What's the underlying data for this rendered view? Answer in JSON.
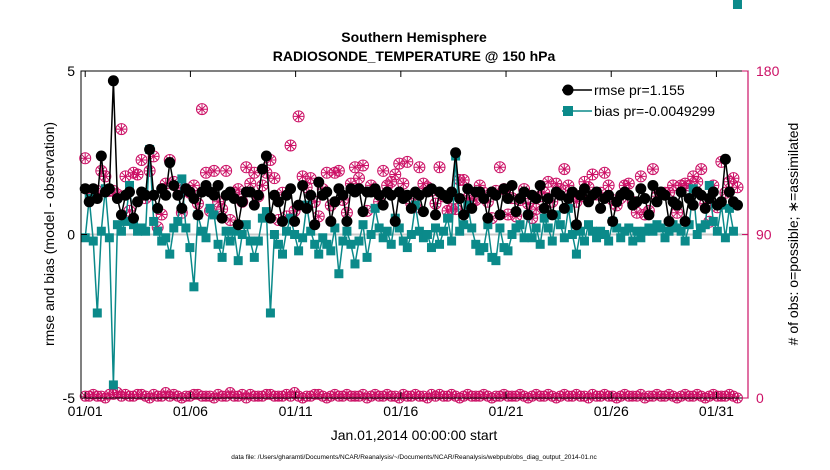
{
  "chart_data": {
    "type": "line",
    "title": "Southern Hemisphere",
    "subtitle": "RADIOSONDE_TEMPERATURE @ 150 hPa",
    "xlabel": "Jan.01,2014 00:00:00 start",
    "ylabel": "rmse and bias (model - observation)",
    "y2label": "# of obs:  o=possible;  ∗=assimilated",
    "footnote": "data file: /Users/gharamti/Documents/NCAR/Reanalysis/~/Documents/NCAR/Reanalysis/webpub/obs_diag_output_2014-01.nc",
    "xlim": [
      0.8,
      32.5
    ],
    "ylim": [
      -5,
      5
    ],
    "y2lim": [
      0,
      180
    ],
    "x_ticks": [
      1,
      6,
      11,
      16,
      21,
      26,
      31
    ],
    "x_tick_labels": [
      "01/01",
      "01/06",
      "01/11",
      "01/16",
      "01/21",
      "01/26",
      "01/31"
    ],
    "y_ticks": [
      -5,
      0,
      5
    ],
    "y_tick_labels": [
      "-5",
      "0",
      "5"
    ],
    "y2_ticks": [
      0,
      90,
      180
    ],
    "y2_tick_labels": [
      "0",
      "90",
      "180"
    ],
    "colors": {
      "rmse": "#000000",
      "bias": "#0b8a8a",
      "obs": "#cc1166",
      "zero_line": "#c8c8c8"
    },
    "series": [
      {
        "name": "rmse",
        "legend": "rmse pr=1.155",
        "values": [
          1.4,
          1.0,
          1.4,
          1.1,
          2.4,
          1.3,
          1.4,
          4.7,
          1.1,
          0.6,
          1.2,
          1.3,
          0.5,
          1.0,
          1.3,
          1.2,
          2.6,
          1.2,
          0.8,
          1.4,
          1.2,
          2.2,
          1.5,
          1.2,
          0.8,
          1.4,
          1.3,
          1.1,
          0.6,
          1.3,
          1.5,
          1.3,
          1.2,
          1.5,
          0.5,
          1.2,
          1.3,
          1.1,
          0.3,
          1.0,
          1.3,
          1.3,
          0.9,
          1.2,
          2.0,
          2.4,
          0.5,
          1.2,
          1.0,
          0.4,
          1.2,
          1.4,
          0.4,
          0.9,
          1.5,
          0.8,
          1.2,
          0.3,
          1.6,
          1.2,
          1.3,
          0.4,
          1.0,
          1.4,
          1.2,
          0.4,
          1.4,
          1.3,
          1.4,
          0.7,
          1.3,
          1.3,
          1.4,
          1.2,
          0.9,
          1.3,
          1.2,
          0.4,
          1.3,
          1.1,
          1.2,
          0.8,
          1.3,
          1.2,
          0.7,
          1.3,
          1.4,
          0.6,
          1.3,
          1.2,
          1.1,
          1.3,
          2.5,
          1.1,
          0.6,
          1.4,
          0.8,
          1.3,
          1.3,
          1.1,
          0.5,
          1.3,
          1.2,
          0.6,
          1.4,
          1.1,
          1.5,
          0.7,
          1.1,
          1.3,
          0.6,
          1.2,
          1.1,
          1.5,
          0.8,
          1.1,
          0.6,
          1.3,
          1.2,
          0.8,
          1.1,
          1.3,
          0.3,
          1.2,
          1.4,
          1.0,
          1.2,
          1.3,
          0.8,
          1.1,
          1.2,
          0.4,
          1.0,
          1.2,
          1.3,
          1.2,
          0.9,
          1.0,
          1.4,
          1.1,
          0.6,
          1.5,
          1.0,
          1.3,
          1.2,
          0.4,
          1.0,
          0.9,
          1.3,
          0.4,
          1.1,
          0.9,
          1.3,
          1.2,
          0.8,
          1.1,
          1.3,
          0.9,
          1.0,
          2.3,
          1.3,
          1.0,
          0.9
        ]
      },
      {
        "name": "bias",
        "legend": "bias pr=-0.0049299",
        "values": [
          -0.1,
          1.1,
          -0.2,
          -2.4,
          0.1,
          1.4,
          -0.1,
          -4.6,
          0.3,
          0.1,
          0.4,
          1.5,
          0.3,
          0.1,
          0.2,
          0.1,
          2.6,
          0.4,
          0.1,
          -0.2,
          -0.1,
          -0.6,
          0.2,
          0.4,
          1.7,
          0.2,
          -0.4,
          -1.6,
          0.6,
          0.1,
          -0.1,
          0.8,
          0.6,
          -0.3,
          -0.7,
          0.1,
          -0.2,
          0.1,
          -0.8,
          0.0,
          0.3,
          -0.2,
          -0.7,
          -0.2,
          0.5,
          0.7,
          -2.4,
          0.0,
          -0.3,
          -0.6,
          0.1,
          0.5,
          0.0,
          -0.5,
          -0.1,
          0.9,
          0.1,
          -0.3,
          -0.6,
          -0.1,
          -0.3,
          -0.5,
          0.2,
          -1.2,
          -0.2,
          0.1,
          -0.3,
          -0.9,
          -0.2,
          0.3,
          -0.7,
          0.0,
          0.8,
          0.2,
          -0.1,
          0.1,
          -0.3,
          0.5,
          0.2,
          -0.2,
          -0.4,
          0.0,
          0.9,
          0.1,
          -0.1,
          0.0,
          -0.4,
          0.2,
          -0.3,
          0.1,
          0.5,
          -0.2,
          2.4,
          0.1,
          0.3,
          0.9,
          0.2,
          -0.3,
          -0.5,
          -0.4,
          0.3,
          -0.7,
          -0.8,
          0.2,
          -0.4,
          -0.5,
          0.0,
          0.2,
          0.3,
          -0.1,
          0.6,
          -0.1,
          0.2,
          -0.3,
          0.5,
          0.2,
          -0.2,
          0.6,
          0.3,
          -0.1,
          0.8,
          0.0,
          -0.6,
          0.1,
          -0.2,
          0.3,
          0.1,
          -0.1,
          0.1,
          0.0,
          -0.2,
          0.4,
          0.2,
          -0.1,
          0.1,
          0.2,
          -0.2,
          0.1,
          -0.1,
          0.1,
          0.2,
          0.1,
          0.3,
          0.2,
          -0.1,
          0.1,
          0.3,
          0.2,
          0.1,
          -0.2,
          0.3,
          1.4,
          0.0,
          0.2,
          0.3,
          1.5,
          0.4,
          0.1,
          0.9,
          -0.1,
          0.8,
          0.1
        ]
      },
      {
        "name": "observations possible",
        "marker": "o",
        "values_y2": [
          132,
          114,
          113,
          114,
          125,
          122,
          114,
          114,
          112,
          148,
          122,
          103,
          124,
          123,
          131,
          110,
          125,
          133,
          94,
          101,
          118,
          131,
          119,
          116,
          102,
          115,
          113,
          117,
          107,
          159,
          124,
          103,
          125,
          108,
          104,
          125,
          98,
          113,
          115,
          108,
          127,
          118,
          124,
          111,
          117,
          124,
          131,
          121,
          98,
          113,
          100,
          139,
          103,
          155,
          122,
          116,
          121,
          108,
          100,
          115,
          124,
          106,
          124,
          125,
          109,
          102,
          118,
          127,
          121,
          128,
          103,
          117,
          114,
          108,
          125,
          117,
          119,
          123,
          129,
          118,
          130,
          107,
          105,
          127,
          118,
          116,
          114,
          107,
          127,
          111,
          103,
          104,
          104,
          120,
          120,
          110,
          107,
          109,
          117,
          113,
          108,
          99,
          114,
          127,
          115,
          101,
          110,
          100,
          109,
          115,
          107,
          99,
          104,
          111,
          113,
          119,
          108,
          118,
          115,
          126,
          117,
          113,
          108,
          111,
          119,
          116,
          123,
          112,
          113,
          124,
          117,
          109,
          106,
          110,
          117,
          118,
          108,
          102,
          122,
          101,
          103,
          126,
          111,
          113,
          113,
          113,
          117,
          102,
          117,
          118,
          117,
          122,
          119,
          126,
          107,
          97,
          117,
          105,
          130,
          113,
          119,
          121,
          116,
          116,
          108,
          98,
          118
        ]
      },
      {
        "name": "observations assimilated",
        "marker": "*",
        "values_y2": [
          132,
          114,
          113,
          114,
          125,
          122,
          114,
          114,
          112,
          148,
          122,
          103,
          124,
          123,
          131,
          110,
          125,
          133,
          94,
          101,
          118,
          131,
          119,
          116,
          102,
          115,
          113,
          117,
          107,
          159,
          124,
          103,
          125,
          108,
          104,
          125,
          98,
          113,
          115,
          108,
          127,
          118,
          124,
          111,
          117,
          124,
          131,
          121,
          98,
          113,
          100,
          139,
          103,
          155,
          122,
          116,
          121,
          108,
          100,
          115,
          124,
          106,
          124,
          125,
          109,
          102,
          118,
          127,
          121,
          128,
          103,
          117,
          114,
          108,
          125,
          117,
          119,
          123,
          129,
          118,
          130,
          107,
          105,
          127,
          118,
          116,
          114,
          107,
          127,
          111,
          103,
          104,
          104,
          120,
          120,
          110,
          107,
          109,
          117,
          113,
          108,
          99,
          114,
          127,
          115,
          101,
          110,
          100,
          109,
          115,
          107,
          99,
          104,
          111,
          113,
          119,
          108,
          118,
          115,
          126,
          117,
          113,
          108,
          111,
          119,
          116,
          123,
          112,
          113,
          124,
          117,
          109,
          106,
          110,
          117,
          118,
          108,
          102,
          122,
          101,
          103,
          126,
          111,
          113,
          113,
          113,
          117,
          102,
          117,
          118,
          117,
          122,
          119,
          126,
          107,
          97,
          117,
          105,
          130,
          113,
          119,
          121,
          116,
          116,
          108,
          98,
          118
        ]
      },
      {
        "name": "observations baseline",
        "marker": "o*",
        "values_y2": [
          1,
          1,
          2,
          1,
          1,
          0,
          2,
          2,
          3,
          1,
          2,
          1,
          1,
          2,
          2,
          1,
          0,
          2,
          1,
          1,
          3,
          1,
          2,
          1,
          0,
          1,
          1,
          2,
          2,
          1,
          1,
          1,
          0,
          2,
          1,
          1,
          3,
          1,
          1,
          2,
          0,
          2,
          1,
          1,
          1,
          2,
          2,
          1,
          1,
          1,
          2,
          1,
          3,
          1,
          0,
          1,
          1,
          2,
          2,
          1,
          0,
          1,
          2,
          1,
          1,
          2,
          1,
          1,
          1,
          2,
          0,
          1,
          2,
          1,
          1,
          2,
          1,
          1,
          0,
          2,
          1,
          1,
          2,
          1,
          1,
          0,
          2,
          1,
          2,
          1,
          1,
          2,
          1,
          0,
          1,
          2,
          1,
          1,
          1,
          2,
          1,
          0,
          1,
          1,
          2,
          1,
          1,
          1,
          2,
          1,
          0,
          1,
          2,
          1,
          1,
          2,
          1,
          0,
          1,
          2,
          1,
          1,
          2,
          1,
          1,
          0,
          2,
          1,
          1,
          2,
          1,
          1,
          0,
          1,
          2,
          1,
          1,
          1,
          2,
          0,
          1,
          1,
          2,
          1,
          1,
          2,
          1,
          0,
          1,
          2,
          1,
          1,
          2,
          1,
          0,
          1,
          2,
          1,
          1,
          1,
          2,
          1,
          0,
          1,
          2,
          1,
          1
        ]
      }
    ]
  }
}
